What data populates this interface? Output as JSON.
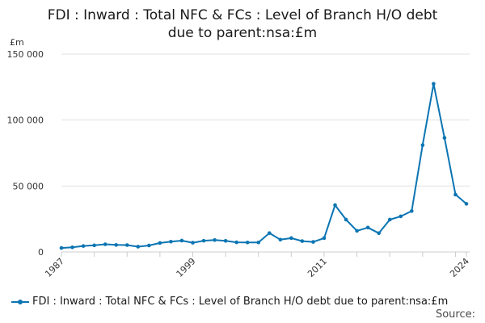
{
  "title_line1": "FDI : Inward : Total NFC & FCs : Level of Branch H/O debt",
  "title_line2": "due to parent:nsa:£m",
  "source_label": "Source:",
  "chart_data": {
    "type": "line",
    "title": "FDI : Inward : Total NFC & FCs : Level of Branch H/O debt due to parent:nsa:£m",
    "ylabel": "£m",
    "ylim": [
      0,
      150000
    ],
    "yticks": [
      0,
      50000,
      100000,
      150000
    ],
    "ytick_labels": [
      "0",
      "50 000",
      "100 000",
      "150 000"
    ],
    "xticks": [
      1987,
      1999,
      2011,
      2024
    ],
    "xtick_labels": [
      "1987",
      "1999",
      "2011",
      "2024"
    ],
    "grid": true,
    "legend_position": "bottom-left",
    "color": "#0b75b3",
    "series": [
      {
        "name": "FDI : Inward : Total NFC & FCs : Level of Branch H/O debt due to parent:nsa:£m",
        "x": [
          1987,
          1988,
          1989,
          1990,
          1991,
          1992,
          1993,
          1994,
          1995,
          1996,
          1997,
          1998,
          1999,
          2000,
          2001,
          2002,
          2003,
          2004,
          2005,
          2006,
          2007,
          2008,
          2009,
          2010,
          2011,
          2012,
          2013,
          2014,
          2015,
          2016,
          2017,
          2018,
          2019,
          2020,
          2021,
          2022,
          2023,
          2024
        ],
        "values": [
          3000,
          3500,
          4500,
          5000,
          5800,
          5300,
          5200,
          4000,
          4900,
          6800,
          7800,
          8600,
          7000,
          8500,
          9000,
          8400,
          7300,
          7200,
          7200,
          14300,
          9300,
          10500,
          8200,
          7600,
          10500,
          35500,
          24500,
          16000,
          18500,
          14200,
          24500,
          27000,
          31000,
          81000,
          127500,
          86500,
          43500,
          36500
        ]
      }
    ]
  }
}
